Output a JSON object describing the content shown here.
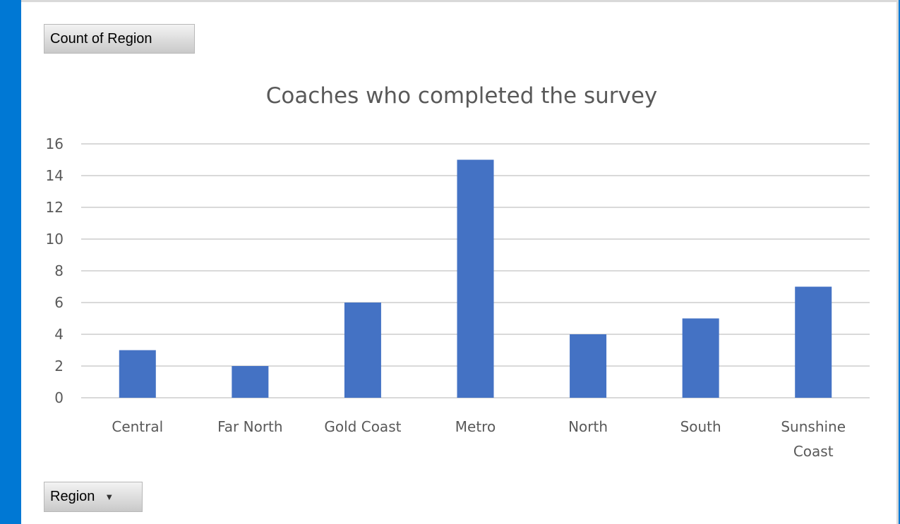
{
  "pivot": {
    "values_field_label": "Count of Region",
    "axis_field_label": "Region",
    "axis_field_dropdown_icon": "chevron-down-icon"
  },
  "colors": {
    "bar": "#4472c4",
    "gridline": "#d9d9d9",
    "text": "#595959",
    "frame_accent": "#0078d4"
  },
  "chart_data": {
    "type": "bar",
    "title": "Coaches who completed the survey",
    "xlabel": "",
    "ylabel": "",
    "categories": [
      "Central",
      "Far North",
      "Gold Coast",
      "Metro",
      "North",
      "South",
      "Sunshine Coast"
    ],
    "category_label_lines": [
      [
        "Central"
      ],
      [
        "Far North"
      ],
      [
        "Gold Coast"
      ],
      [
        "Metro"
      ],
      [
        "North"
      ],
      [
        "South"
      ],
      [
        "Sunshine",
        "Coast"
      ]
    ],
    "values": [
      3,
      2,
      6,
      15,
      4,
      5,
      7
    ],
    "ylim": [
      0,
      16
    ],
    "yticks": [
      0,
      2,
      4,
      6,
      8,
      10,
      12,
      14,
      16
    ],
    "grid": true,
    "legend": "none"
  }
}
